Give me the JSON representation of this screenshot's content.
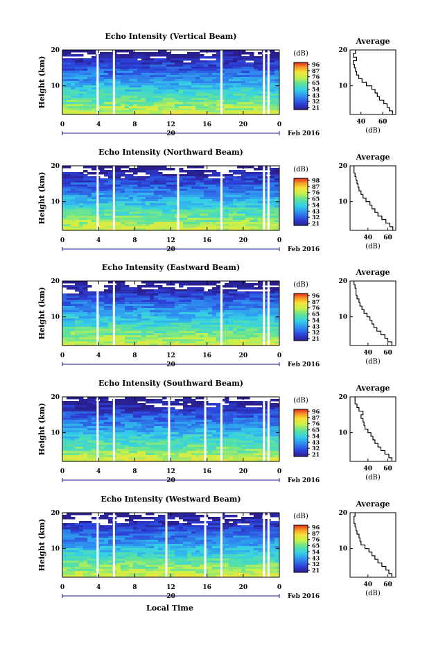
{
  "figure": {
    "xlabel": "Local Time",
    "date_label": "Feb 2016",
    "date_day": "20"
  },
  "chart_data": [
    {
      "type": "heatmap",
      "title": "Echo Intensity (Vertical Beam)",
      "ylabel": "Height (km)",
      "x": {
        "range": [
          0,
          24
        ],
        "ticks": [
          "0",
          "4",
          "8",
          "12",
          "16",
          "20",
          "0"
        ]
      },
      "y": {
        "range": [
          2,
          20
        ],
        "ticks": [
          "10",
          "20"
        ]
      },
      "colorbar": {
        "unit": "(dB)",
        "ticks": [
          "96",
          "87",
          "76",
          "65",
          "54",
          "43",
          "32",
          "21"
        ]
      },
      "gaps_hours": [
        3.9,
        5.7,
        17.6,
        22.3,
        22.8
      ],
      "profile": {
        "title": "Average",
        "xlabel": "(dB)",
        "xlim": [
          30,
          72
        ],
        "xticks": [
          "40",
          "60"
        ],
        "yticks": [
          "10",
          "20"
        ],
        "points": [
          [
            69,
            2.5
          ],
          [
            66,
            3.5
          ],
          [
            64,
            4.5
          ],
          [
            61,
            5.5
          ],
          [
            57,
            6.5
          ],
          [
            55,
            7.5
          ],
          [
            53,
            8.5
          ],
          [
            50,
            9.5
          ],
          [
            45,
            10.5
          ],
          [
            41,
            11.5
          ],
          [
            38,
            12.5
          ],
          [
            36,
            13.5
          ],
          [
            35,
            14.5
          ],
          [
            34,
            15.5
          ],
          [
            33,
            16.5
          ],
          [
            36,
            17.5
          ],
          [
            33,
            18.5
          ],
          [
            35,
            19.5
          ]
        ]
      }
    },
    {
      "type": "heatmap",
      "title": "Echo Intensity (Northward Beam)",
      "ylabel": "Height (km)",
      "x": {
        "range": [
          0,
          24
        ],
        "ticks": [
          "0",
          "4",
          "8",
          "12",
          "16",
          "20",
          "0"
        ]
      },
      "y": {
        "range": [
          2,
          20
        ],
        "ticks": [
          "10",
          "20"
        ]
      },
      "colorbar": {
        "unit": "(dB)",
        "ticks": [
          "98",
          "87",
          "76",
          "65",
          "54",
          "43",
          "32",
          "21"
        ]
      },
      "gaps_hours": [
        3.9,
        5.7,
        12.8,
        17.6,
        22.3,
        22.8
      ],
      "profile": {
        "title": "Average",
        "xlabel": "(dB)",
        "xlim": [
          22,
          68
        ],
        "xticks": [
          "40",
          "60"
        ],
        "yticks": [
          "10",
          "20"
        ],
        "points": [
          [
            65,
            2.5
          ],
          [
            62,
            3.5
          ],
          [
            58,
            4.5
          ],
          [
            54,
            5.5
          ],
          [
            50,
            6.5
          ],
          [
            47,
            7.5
          ],
          [
            44,
            8.5
          ],
          [
            42,
            9.5
          ],
          [
            38,
            10.5
          ],
          [
            35,
            11.5
          ],
          [
            33,
            12.5
          ],
          [
            31,
            13.5
          ],
          [
            30,
            14.5
          ],
          [
            29,
            15.5
          ],
          [
            28,
            16.5
          ],
          [
            27,
            17.5
          ],
          [
            26,
            18.5
          ],
          [
            26,
            19.5
          ]
        ]
      }
    },
    {
      "type": "heatmap",
      "title": "Echo Intensity (Eastward Beam)",
      "ylabel": "Height (km)",
      "x": {
        "range": [
          0,
          24
        ],
        "ticks": [
          "0",
          "4",
          "8",
          "12",
          "16",
          "20",
          "0"
        ]
      },
      "y": {
        "range": [
          2,
          20
        ],
        "ticks": [
          "10",
          "20"
        ]
      },
      "colorbar": {
        "unit": "(dB)",
        "ticks": [
          "96",
          "87",
          "76",
          "65",
          "54",
          "43",
          "32",
          "21"
        ]
      },
      "gaps_hours": [
        3.9,
        5.7,
        17.6,
        22.3,
        22.8
      ],
      "profile": {
        "title": "Average",
        "xlabel": "(dB)",
        "xlim": [
          22,
          68
        ],
        "xticks": [
          "40",
          "60"
        ],
        "yticks": [
          "10",
          "20"
        ],
        "points": [
          [
            64,
            2.5
          ],
          [
            60,
            3.5
          ],
          [
            57,
            4.5
          ],
          [
            53,
            5.5
          ],
          [
            49,
            6.5
          ],
          [
            46,
            7.5
          ],
          [
            44,
            8.5
          ],
          [
            42,
            9.5
          ],
          [
            39,
            10.5
          ],
          [
            36,
            11.5
          ],
          [
            34,
            12.5
          ],
          [
            32,
            13.5
          ],
          [
            31,
            14.5
          ],
          [
            29,
            15.5
          ],
          [
            28,
            16.5
          ],
          [
            28,
            17.5
          ],
          [
            27,
            18.5
          ],
          [
            26,
            19.5
          ]
        ]
      }
    },
    {
      "type": "heatmap",
      "title": "Echo Intensity (Southward Beam)",
      "ylabel": "Height (km)",
      "x": {
        "range": [
          0,
          24
        ],
        "ticks": [
          "0",
          "4",
          "8",
          "12",
          "16",
          "20",
          "0"
        ]
      },
      "y": {
        "range": [
          2,
          20
        ],
        "ticks": [
          "10",
          "20"
        ]
      },
      "colorbar": {
        "unit": "(dB)",
        "ticks": [
          "96",
          "87",
          "76",
          "65",
          "54",
          "43",
          "32",
          "21"
        ]
      },
      "gaps_hours": [
        3.9,
        5.7,
        11.8,
        15.8,
        17.6,
        22.3,
        22.8
      ],
      "profile": {
        "title": "Average",
        "xlabel": "(dB)",
        "xlim": [
          22,
          68
        ],
        "xticks": [
          "40",
          "60"
        ],
        "yticks": [
          "10",
          "20"
        ],
        "points": [
          [
            64,
            2.5
          ],
          [
            61,
            3.5
          ],
          [
            57,
            4.5
          ],
          [
            53,
            5.5
          ],
          [
            50,
            6.5
          ],
          [
            47,
            7.5
          ],
          [
            45,
            8.5
          ],
          [
            43,
            9.5
          ],
          [
            40,
            10.5
          ],
          [
            37,
            11.5
          ],
          [
            36,
            12.5
          ],
          [
            35,
            13.5
          ],
          [
            33,
            14.5
          ],
          [
            35,
            15.5
          ],
          [
            31,
            16.5
          ],
          [
            29,
            17.5
          ],
          [
            27,
            18.5
          ],
          [
            27,
            19.5
          ]
        ]
      }
    },
    {
      "type": "heatmap",
      "title": "Echo Intensity (Westward Beam)",
      "ylabel": "Height (km)",
      "x": {
        "range": [
          0,
          24
        ],
        "ticks": [
          "0",
          "4",
          "8",
          "12",
          "16",
          "20",
          "0"
        ]
      },
      "y": {
        "range": [
          2,
          20
        ],
        "ticks": [
          "10",
          "20"
        ]
      },
      "colorbar": {
        "unit": "(dB)",
        "ticks": [
          "96",
          "87",
          "76",
          "65",
          "54",
          "43",
          "32",
          "21"
        ]
      },
      "gaps_hours": [
        3.9,
        5.7,
        11.5,
        15.8,
        17.6,
        22.3,
        22.8
      ],
      "profile": {
        "title": "Average",
        "xlabel": "(dB)",
        "xlim": [
          22,
          68
        ],
        "xticks": [
          "40",
          "60"
        ],
        "yticks": [
          "10",
          "20"
        ],
        "points": [
          [
            64,
            2.5
          ],
          [
            61,
            3.5
          ],
          [
            58,
            4.5
          ],
          [
            54,
            5.5
          ],
          [
            50,
            6.5
          ],
          [
            47,
            7.5
          ],
          [
            44,
            8.5
          ],
          [
            41,
            9.5
          ],
          [
            37,
            10.5
          ],
          [
            33,
            11.5
          ],
          [
            32,
            12.5
          ],
          [
            31,
            13.5
          ],
          [
            29,
            14.5
          ],
          [
            28,
            15.5
          ],
          [
            27,
            16.5
          ],
          [
            26,
            17.5
          ],
          [
            26,
            18.5
          ],
          [
            27,
            19.5
          ]
        ]
      }
    }
  ]
}
